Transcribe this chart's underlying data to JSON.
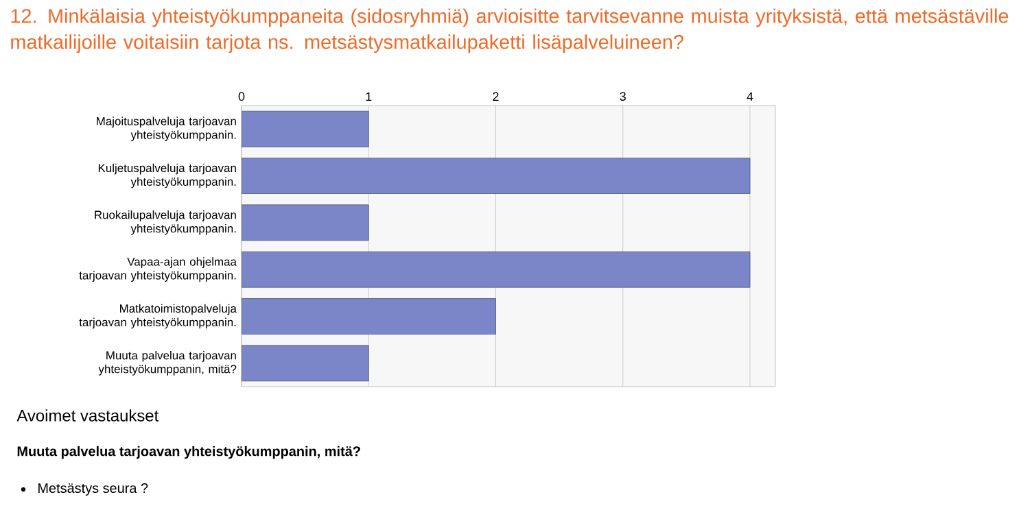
{
  "chart_data": {
    "type": "bar",
    "orientation": "horizontal",
    "title": "12. Minkälaisia yhteistyökumppaneita (sidosryhmiä) arvioisitte tarvitsevanne muista yrityksistä, että metsästäville matkailijoille voitaisiin tarjota ns. metsästysmatkailupaketti lisäpalveluineen?",
    "categories": [
      "Majoituspalveluja tarjoavan yhteistyökumppanin.",
      "Kuljetuspalveluja tarjoavan yhteistyökumppanin.",
      "Ruokailupalveluja tarjoavan yhteistyökumppanin.",
      "Vapaa-ajan ohjelmaa tarjoavan yhteistyökumppanin.",
      "Matkatoimistopalveluja tarjoavan yhteistyökumppanin.",
      "Muuta palvelua tarjoavan yhteistyökumppanin, mitä?"
    ],
    "values": [
      1,
      4,
      1,
      4,
      2,
      1
    ],
    "color": "#7b86c8",
    "xlim": [
      0,
      4.2
    ],
    "xticks": [
      0,
      1,
      2,
      3,
      4
    ],
    "grid": "x",
    "annotations": [
      "Avoimet vastaukset",
      "Muuta palvelua tarjoavan yhteistyökumppanin, mitä?",
      "Metsästys seura ?"
    ]
  }
}
